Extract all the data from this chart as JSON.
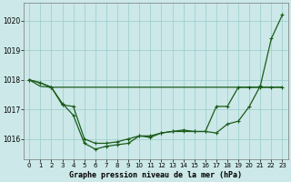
{
  "title": "Graphe pression niveau de la mer (hPa)",
  "background_color": "#cce8e8",
  "grid_color": "#99cccc",
  "line_color": "#1a5c1a",
  "x_labels": [
    "0",
    "1",
    "2",
    "3",
    "4",
    "5",
    "6",
    "7",
    "8",
    "9",
    "10",
    "11",
    "12",
    "13",
    "14",
    "15",
    "16",
    "17",
    "18",
    "19",
    "20",
    "21",
    "22",
    "23"
  ],
  "ylim": [
    1015.3,
    1020.6
  ],
  "yticks": [
    1016,
    1017,
    1018,
    1019,
    1020
  ],
  "line1_x": [
    0,
    1,
    2,
    23
  ],
  "line1_y": [
    1018.0,
    1017.78,
    1017.75,
    1017.75
  ],
  "line2": [
    1018.0,
    1017.9,
    1017.75,
    1017.2,
    1016.8,
    1015.85,
    1015.65,
    1015.75,
    1015.8,
    1015.85,
    1016.1,
    1016.05,
    1016.2,
    1016.25,
    1016.25,
    1016.25,
    1016.25,
    1016.2,
    1016.5,
    1016.6,
    1017.1,
    1017.8,
    1019.4,
    1020.2
  ],
  "line3": [
    1018.0,
    1017.9,
    1017.75,
    1017.15,
    1017.1,
    1016.0,
    1015.85,
    1015.85,
    1015.9,
    1016.0,
    1016.1,
    1016.1,
    1016.2,
    1016.25,
    1016.3,
    1016.25,
    1016.25,
    1017.1,
    1017.1,
    1017.75,
    1017.75,
    1017.75,
    1017.75,
    1017.75
  ]
}
